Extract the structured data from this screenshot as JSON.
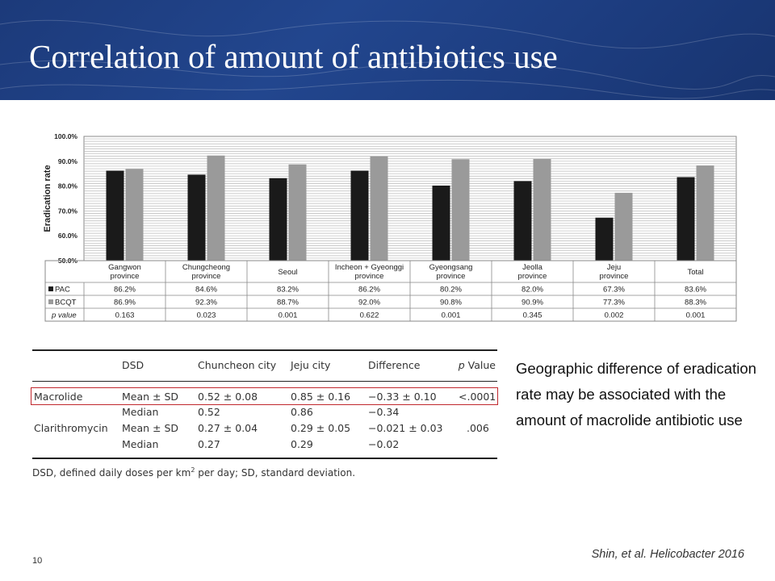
{
  "slide": {
    "title": "Correlation of amount of antibiotics use",
    "takeaway": "Geographic difference of eradication rate may be associated with the amount of macrolide antibiotic use",
    "citation": "Shin, et al. Helicobacter 2016",
    "page_number": "10"
  },
  "colors": {
    "header_bg": "#1f3f84",
    "pac_bar": "#1a1a1a",
    "bcqt_bar": "#9a9a9a",
    "highlight_box": "#c0272d"
  },
  "chart_data": {
    "type": "bar",
    "ylabel": "Eradication rate",
    "ylim": [
      50,
      100
    ],
    "yticks": [
      "100.0%",
      "90.0%",
      "80.0%",
      "70.0%",
      "60.0%",
      "50.0%"
    ],
    "yticks_values": [
      100,
      90,
      80,
      70,
      60,
      50
    ],
    "grid": true,
    "legend": "table",
    "categories": [
      [
        "Gangwon",
        "province"
      ],
      [
        "Chungcheong",
        "province"
      ],
      [
        "Seoul"
      ],
      [
        "Incheon + Gyeonggi",
        "province"
      ],
      [
        "Gyeongsang",
        "province"
      ],
      [
        "Jeolla",
        "province"
      ],
      [
        "Jeju",
        "province"
      ],
      [
        "Total"
      ]
    ],
    "series": [
      {
        "name": "PAC",
        "values": [
          86.2,
          84.6,
          83.2,
          86.2,
          80.2,
          82.0,
          67.3,
          83.6
        ],
        "labels": [
          "86.2%",
          "84.6%",
          "83.2%",
          "86.2%",
          "80.2%",
          "82.0%",
          "67.3%",
          "83.6%"
        ]
      },
      {
        "name": "BCQT",
        "values": [
          86.9,
          92.3,
          88.7,
          92.0,
          90.8,
          90.9,
          77.3,
          88.3
        ],
        "labels": [
          "86.9%",
          "92.3%",
          "88.7%",
          "92.0%",
          "90.8%",
          "90.9%",
          "77.3%",
          "88.3%"
        ]
      }
    ],
    "p_label": "p value",
    "p_values": [
      "0.163",
      "0.023",
      "0.001",
      "0.622",
      "0.001",
      "0.345",
      "0.002",
      "0.001"
    ]
  },
  "stats_table": {
    "headers": [
      "DSD",
      "Chuncheon city",
      "Jeju city",
      "Difference",
      "p Value"
    ],
    "rows": [
      [
        "Macrolide",
        "Mean ± SD",
        "0.52 ± 0.08",
        "0.85 ± 0.16",
        "−0.33 ± 0.10",
        "<.0001"
      ],
      [
        "",
        "Median",
        "0.52",
        "0.86",
        "−0.34",
        ""
      ],
      [
        "Clarithromycin",
        "Mean ± SD",
        "0.27 ± 0.04",
        "0.29 ± 0.05",
        "−0.021 ± 0.03",
        ".006"
      ],
      [
        "",
        "Median",
        "0.27",
        "0.29",
        "−0.02",
        ""
      ]
    ],
    "footnote_pre": "DSD, defined daily doses per km",
    "footnote_sup": "2",
    "footnote_post": " per day; SD, standard deviation."
  }
}
